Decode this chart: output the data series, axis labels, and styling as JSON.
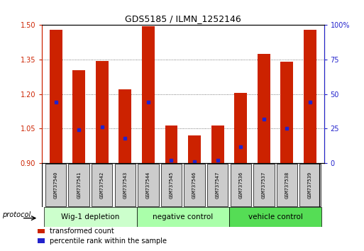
{
  "title": "GDS5185 / ILMN_1252146",
  "samples": [
    "GSM737540",
    "GSM737541",
    "GSM737542",
    "GSM737543",
    "GSM737544",
    "GSM737545",
    "GSM737546",
    "GSM737547",
    "GSM737536",
    "GSM737537",
    "GSM737538",
    "GSM737539"
  ],
  "bar_tops": [
    1.48,
    1.305,
    1.345,
    1.22,
    1.495,
    1.065,
    1.02,
    1.065,
    1.205,
    1.375,
    1.34,
    1.48
  ],
  "bar_bottom": 0.9,
  "percentile_ranks": [
    44,
    24,
    26,
    18,
    44,
    2,
    1,
    2,
    12,
    32,
    25,
    44
  ],
  "groups": [
    {
      "label": "Wig-1 depletion",
      "start": 0,
      "end": 4,
      "color": "#ccffcc"
    },
    {
      "label": "negative control",
      "start": 4,
      "end": 8,
      "color": "#aaffaa"
    },
    {
      "label": "vehicle control",
      "start": 8,
      "end": 12,
      "color": "#66ee66"
    }
  ],
  "ylim_left": [
    0.9,
    1.5
  ],
  "ylim_right": [
    0,
    100
  ],
  "yticks_left": [
    0.9,
    1.05,
    1.2,
    1.35,
    1.5
  ],
  "yticks_right": [
    0,
    25,
    50,
    75,
    100
  ],
  "bar_color": "#cc2200",
  "dot_color": "#2222cc",
  "bar_width": 0.55,
  "grid_color": "#555555",
  "label_color_left": "#cc2200",
  "label_color_right": "#2222cc",
  "protocol_label": "protocol",
  "legend_items": [
    {
      "color": "#cc2200",
      "label": "transformed count"
    },
    {
      "color": "#2222cc",
      "label": "percentile rank within the sample"
    }
  ],
  "title_fontsize": 9,
  "tick_fontsize": 7,
  "sample_fontsize": 5,
  "group_fontsize": 7.5
}
